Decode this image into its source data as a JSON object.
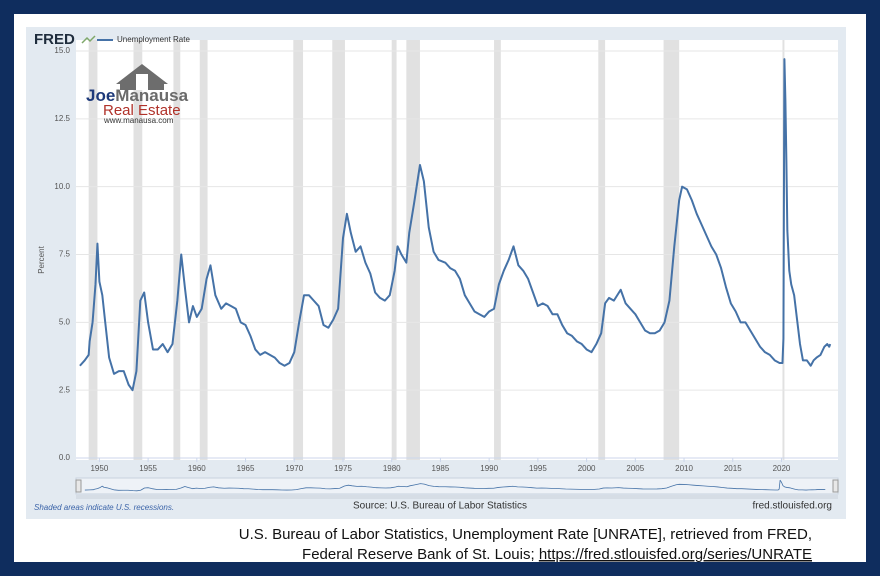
{
  "brand": "FRED",
  "watermark": {
    "first": "Joe",
    "last": "Manausa",
    "line2": "Real Estate",
    "url": "www.manausa.com"
  },
  "chart_data": {
    "type": "line",
    "y_label": "Percent",
    "source": "Source: U.S. Bureau of Labor Statistics",
    "site": "fred.stlouisfed.org",
    "note": "Shaded areas indicate U.S. recessions.",
    "xlim": [
      1947.6,
      2025.8
    ],
    "xticks": [
      1950,
      1955,
      1960,
      1965,
      1970,
      1975,
      1980,
      1985,
      1990,
      1995,
      2000,
      2005,
      2010,
      2015,
      2020
    ],
    "ylim": [
      0,
      15
    ],
    "yticks": [
      {
        "value": 0,
        "label": "0.0"
      },
      2.5,
      {
        "value": 5,
        "label": "5.0"
      },
      7.5,
      {
        "value": 10,
        "label": "10.0"
      },
      12.5,
      {
        "value": 15,
        "label": "15.0"
      }
    ],
    "grid": true,
    "recession_color": "#e1e1e1",
    "recessions": [
      [
        1948.9,
        1949.8
      ],
      [
        1953.5,
        1954.4
      ],
      [
        1957.6,
        1958.3
      ],
      [
        1960.3,
        1961.1
      ],
      [
        1969.9,
        1970.9
      ],
      [
        1973.9,
        1975.2
      ],
      [
        1980.0,
        1980.5
      ],
      [
        1981.5,
        1982.9
      ],
      [
        1990.5,
        1991.2
      ],
      [
        2001.2,
        2001.9
      ],
      [
        2007.9,
        2009.5
      ],
      [
        2020.1,
        2020.3
      ]
    ],
    "x": [
      1948.0,
      1948.5,
      1948.9,
      1949.0,
      1949.3,
      1949.6,
      1949.8,
      1950.0,
      1950.3,
      1950.6,
      1951.0,
      1951.5,
      1952.0,
      1952.5,
      1953.0,
      1953.4,
      1953.8,
      1954.2,
      1954.6,
      1955.0,
      1955.5,
      1956.0,
      1956.5,
      1957.0,
      1957.5,
      1958.0,
      1958.4,
      1958.8,
      1959.2,
      1959.6,
      1960.0,
      1960.5,
      1961.0,
      1961.4,
      1961.9,
      1962.5,
      1963.0,
      1963.5,
      1964.0,
      1964.5,
      1965.0,
      1965.5,
      1966.0,
      1966.5,
      1967.0,
      1967.5,
      1968.0,
      1968.5,
      1969.0,
      1969.5,
      1970.0,
      1970.5,
      1971.0,
      1971.5,
      1972.0,
      1972.5,
      1973.0,
      1973.5,
      1974.0,
      1974.5,
      1975.0,
      1975.4,
      1975.8,
      1976.3,
      1976.8,
      1977.3,
      1977.8,
      1978.3,
      1978.8,
      1979.3,
      1979.8,
      1980.3,
      1980.6,
      1981.0,
      1981.5,
      1981.8,
      1982.3,
      1982.9,
      1983.3,
      1983.8,
      1984.3,
      1984.8,
      1985.5,
      1986.0,
      1986.5,
      1987.0,
      1987.5,
      1988.0,
      1988.5,
      1989.0,
      1989.5,
      1990.0,
      1990.5,
      1991.0,
      1991.5,
      1992.0,
      1992.5,
      1993.0,
      1993.5,
      1994.0,
      1994.5,
      1995.0,
      1995.5,
      1996.0,
      1996.5,
      1997.0,
      1997.5,
      1998.0,
      1998.5,
      1999.0,
      1999.5,
      2000.0,
      2000.5,
      2001.0,
      2001.5,
      2001.9,
      2002.3,
      2002.8,
      2003.5,
      2004.0,
      2004.5,
      2005.0,
      2005.5,
      2006.0,
      2006.5,
      2007.0,
      2007.5,
      2008.0,
      2008.5,
      2009.0,
      2009.5,
      2009.8,
      2010.3,
      2010.8,
      2011.3,
      2011.8,
      2012.3,
      2012.8,
      2013.3,
      2013.8,
      2014.3,
      2014.8,
      2015.3,
      2015.8,
      2016.3,
      2016.8,
      2017.3,
      2017.8,
      2018.3,
      2018.8,
      2019.3,
      2019.8,
      2020.1,
      2020.2,
      2020.3,
      2020.4,
      2020.5,
      2020.6,
      2020.8,
      2021.0,
      2021.3,
      2021.6,
      2021.9,
      2022.2,
      2022.6,
      2023.0,
      2023.3,
      2023.6,
      2024.0,
      2024.4,
      2024.7,
      2024.9,
      2025.0
    ],
    "series": [
      {
        "name": "Unemployment Rate",
        "color": "#4572a7",
        "values": [
          3.4,
          3.6,
          3.8,
          4.3,
          5.0,
          6.4,
          7.9,
          6.5,
          6.0,
          5.0,
          3.7,
          3.1,
          3.2,
          3.2,
          2.7,
          2.5,
          3.2,
          5.8,
          6.1,
          5.0,
          4.0,
          4.0,
          4.2,
          3.9,
          4.2,
          5.8,
          7.5,
          6.2,
          5.0,
          5.6,
          5.2,
          5.5,
          6.6,
          7.1,
          6.0,
          5.5,
          5.7,
          5.6,
          5.5,
          5.0,
          4.9,
          4.5,
          4.0,
          3.8,
          3.9,
          3.8,
          3.7,
          3.5,
          3.4,
          3.5,
          3.9,
          5.0,
          6.0,
          6.0,
          5.8,
          5.6,
          4.9,
          4.8,
          5.1,
          5.5,
          8.1,
          9.0,
          8.3,
          7.6,
          7.8,
          7.2,
          6.8,
          6.1,
          5.9,
          5.8,
          6.0,
          6.9,
          7.8,
          7.5,
          7.2,
          8.3,
          9.4,
          10.8,
          10.2,
          8.5,
          7.6,
          7.3,
          7.2,
          7.0,
          6.9,
          6.6,
          6.0,
          5.7,
          5.4,
          5.3,
          5.2,
          5.4,
          5.5,
          6.4,
          6.9,
          7.3,
          7.8,
          7.1,
          6.9,
          6.6,
          6.1,
          5.6,
          5.7,
          5.6,
          5.3,
          5.3,
          4.9,
          4.6,
          4.5,
          4.3,
          4.2,
          4.0,
          3.9,
          4.2,
          4.6,
          5.7,
          5.9,
          5.8,
          6.2,
          5.7,
          5.5,
          5.3,
          5.0,
          4.7,
          4.6,
          4.6,
          4.7,
          5.0,
          5.8,
          7.8,
          9.5,
          10.0,
          9.9,
          9.5,
          9.0,
          8.6,
          8.2,
          7.8,
          7.5,
          7.0,
          6.3,
          5.7,
          5.4,
          5.0,
          5.0,
          4.7,
          4.4,
          4.1,
          3.9,
          3.8,
          3.6,
          3.5,
          3.5,
          4.4,
          14.7,
          13.2,
          11.0,
          8.4,
          6.9,
          6.4,
          6.0,
          5.1,
          4.2,
          3.6,
          3.6,
          3.4,
          3.6,
          3.7,
          3.8,
          4.1,
          4.2,
          4.1,
          4.2
        ]
      }
    ]
  },
  "caption": {
    "line1": "U.S. Bureau of Labor Statistics, Unemployment Rate [UNRATE], retrieved from FRED,",
    "line2": "Federal Reserve Bank of St. Louis; ",
    "link": "https://fred.stlouisfed.org/series/UNRATE"
  }
}
